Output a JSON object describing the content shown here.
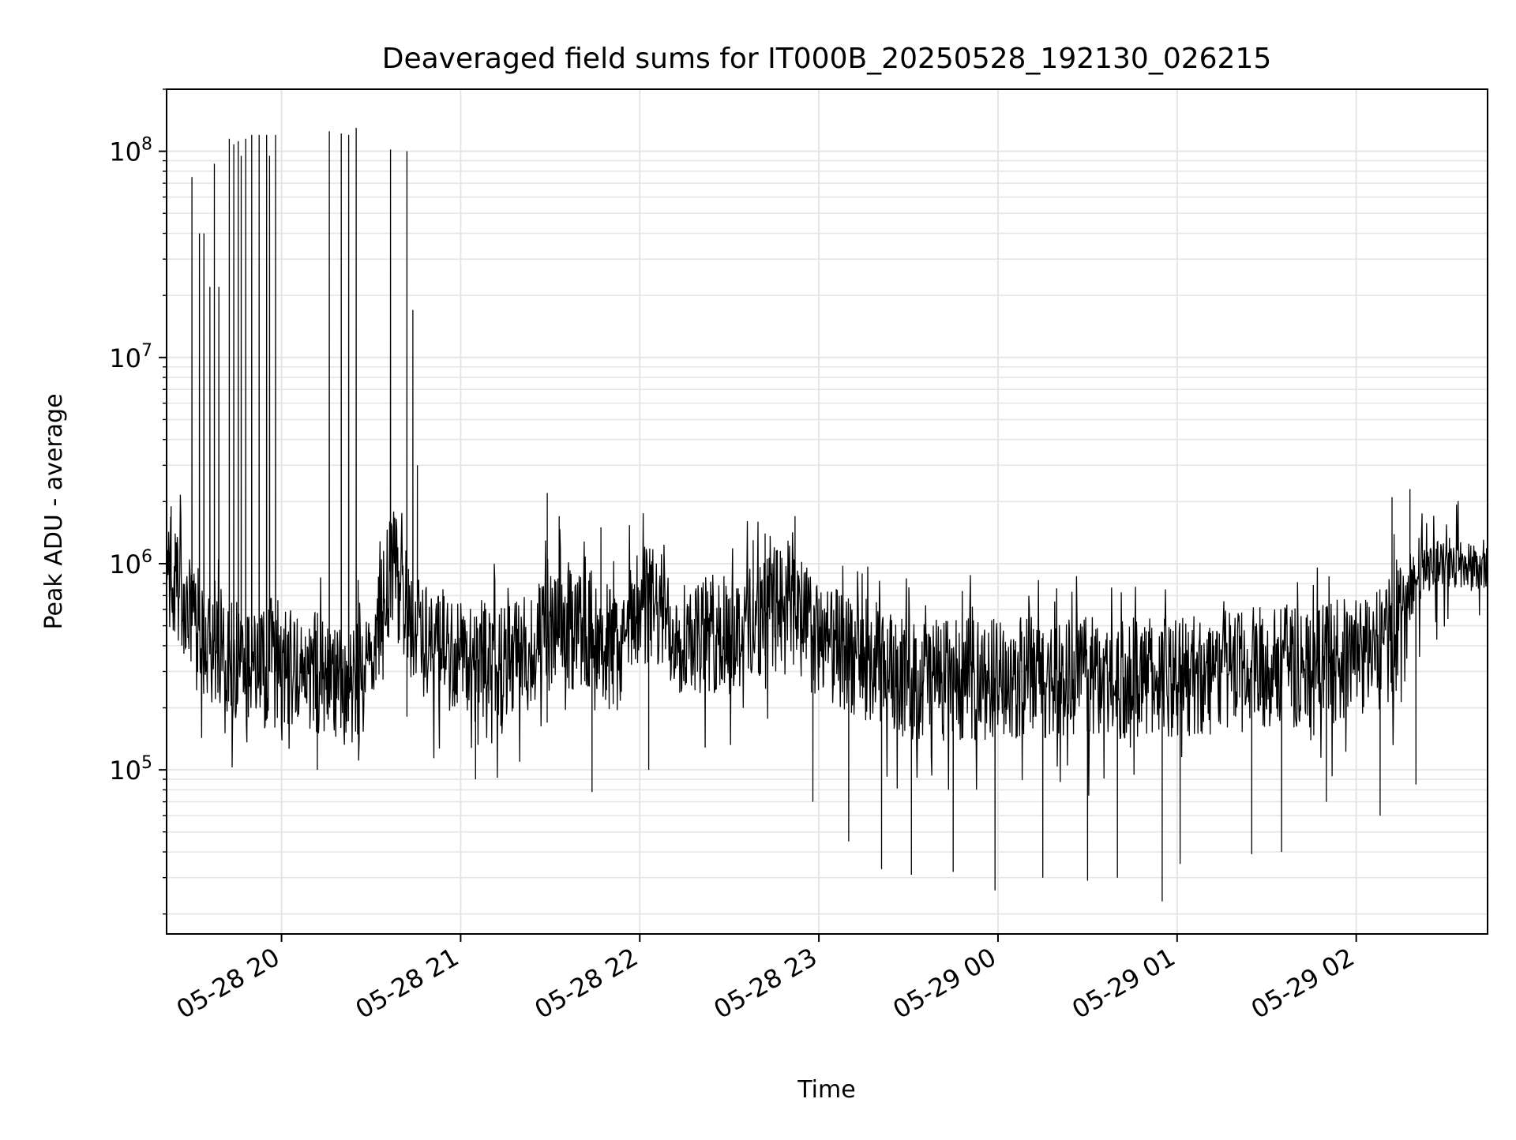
{
  "chart_data": {
    "type": "line",
    "title": "Deaveraged field sums for IT000B_20250528_192130_026215",
    "xlabel": "Time",
    "ylabel": "Peak ADU - average",
    "yscale": "log",
    "ylim": [
      16000,
      200000000
    ],
    "xlim": [
      "2025-05-28 19:21:30",
      "2025-05-29 02:44:00"
    ],
    "grid": true,
    "line_color": "#000000",
    "grid_color": "#e5e5e5",
    "x_ticks": [
      "05-28 20",
      "05-28 21",
      "05-28 22",
      "05-28 23",
      "05-29 00",
      "05-29 01",
      "05-29 02"
    ],
    "x_tick_times": [
      "2025-05-28 20:00",
      "2025-05-28 21:00",
      "2025-05-28 22:00",
      "2025-05-28 23:00",
      "2025-05-29 00:00",
      "2025-05-29 01:00",
      "2025-05-29 02:00"
    ],
    "y_major_ticks": [
      {
        "value": 100000,
        "base": "10",
        "exp": "5"
      },
      {
        "value": 1000000,
        "base": "10",
        "exp": "6"
      },
      {
        "value": 10000000,
        "base": "10",
        "exp": "7"
      },
      {
        "value": 100000000,
        "base": "10",
        "exp": "8"
      }
    ],
    "series": [
      {
        "x": [
          "2025-05-28 19:21:30",
          "2025-05-28 19:30",
          "2025-05-28 19:40",
          "2025-05-28 19:50",
          "2025-05-28 20:00",
          "2025-05-28 20:10",
          "2025-05-28 20:20",
          "2025-05-28 20:30",
          "2025-05-28 20:37",
          "2025-05-28 20:45",
          "2025-05-28 21:00",
          "2025-05-28 21:15",
          "2025-05-28 21:30",
          "2025-05-28 21:45",
          "2025-05-28 21:53",
          "2025-05-28 22:00",
          "2025-05-28 22:15",
          "2025-05-28 22:30",
          "2025-05-28 22:40",
          "2025-05-28 22:50",
          "2025-05-28 23:00",
          "2025-05-28 23:15",
          "2025-05-28 23:30",
          "2025-05-28 23:45",
          "2025-05-29 00:00",
          "2025-05-29 00:15",
          "2025-05-29 00:30",
          "2025-05-29 00:45",
          "2025-05-29 01:00",
          "2025-05-29 01:15",
          "2025-05-29 01:30",
          "2025-05-29 01:45",
          "2025-05-29 02:00",
          "2025-05-29 02:10",
          "2025-05-29 02:15",
          "2025-05-29 02:25",
          "2025-05-29 02:35",
          "2025-05-29 02:44"
        ],
        "values": [
          1000000,
          500000,
          400000,
          300000,
          300000,
          300000,
          250000,
          300000,
          1000000,
          450000,
          350000,
          320000,
          450000,
          500000,
          350000,
          700000,
          450000,
          450000,
          550000,
          700000,
          400000,
          350000,
          280000,
          270000,
          280000,
          280000,
          280000,
          280000,
          280000,
          300000,
          320000,
          320000,
          350000,
          400000,
          600000,
          1000000,
          1000000,
          900000
        ]
      }
    ],
    "spikes": [
      {
        "t": "2025-05-28 19:30:00",
        "v": 75000000
      },
      {
        "t": "2025-05-28 19:32:30",
        "v": 40000000
      },
      {
        "t": "2025-05-28 19:34:00",
        "v": 40000000
      },
      {
        "t": "2025-05-28 19:36:00",
        "v": 22000000
      },
      {
        "t": "2025-05-28 19:37:30",
        "v": 87000000
      },
      {
        "t": "2025-05-28 19:39:00",
        "v": 22000000
      },
      {
        "t": "2025-05-28 19:42:30",
        "v": 115000000
      },
      {
        "t": "2025-05-28 19:44:00",
        "v": 108000000
      },
      {
        "t": "2025-05-28 19:45:30",
        "v": 112000000
      },
      {
        "t": "2025-05-28 19:46:30",
        "v": 95000000
      },
      {
        "t": "2025-05-28 19:48:00",
        "v": 115000000
      },
      {
        "t": "2025-05-28 19:50:00",
        "v": 120000000
      },
      {
        "t": "2025-05-28 19:52:30",
        "v": 120000000
      },
      {
        "t": "2025-05-28 19:55:00",
        "v": 120000000
      },
      {
        "t": "2025-05-28 19:58:00",
        "v": 120000000
      },
      {
        "t": "2025-05-28 20:16:00",
        "v": 125000000
      },
      {
        "t": "2025-05-28 20:20:00",
        "v": 122000000
      },
      {
        "t": "2025-05-28 20:22:30",
        "v": 120000000
      },
      {
        "t": "2025-05-28 20:25:00",
        "v": 130000000
      },
      {
        "t": "2025-05-28 20:36:30",
        "v": 102000000
      },
      {
        "t": "2025-05-28 20:42:00",
        "v": 100000000
      },
      {
        "t": "2025-05-28 20:44:00",
        "v": 17000000
      },
      {
        "t": "2025-05-28 20:45:30",
        "v": 3000000
      }
    ],
    "dips": [
      {
        "t": "2025-05-28 19:56:00",
        "v": 95000000
      },
      {
        "t": "2025-05-28 20:12:00",
        "v": 100000
      },
      {
        "t": "2025-05-28 21:05:00",
        "v": 90000
      },
      {
        "t": "2025-05-28 21:44:00",
        "v": 78000
      },
      {
        "t": "2025-05-28 22:03:00",
        "v": 100000
      },
      {
        "t": "2025-05-28 22:58:00",
        "v": 70000
      },
      {
        "t": "2025-05-28 23:10:00",
        "v": 45000
      },
      {
        "t": "2025-05-28 23:21:00",
        "v": 33000
      },
      {
        "t": "2025-05-28 23:31:00",
        "v": 31000
      },
      {
        "t": "2025-05-28 23:45:00",
        "v": 32000
      },
      {
        "t": "2025-05-28 23:59:00",
        "v": 26000
      },
      {
        "t": "2025-05-29 00:15:00",
        "v": 30000
      },
      {
        "t": "2025-05-29 00:30:00",
        "v": 29000
      },
      {
        "t": "2025-05-29 00:40:00",
        "v": 30000
      },
      {
        "t": "2025-05-29 00:55:00",
        "v": 23000
      },
      {
        "t": "2025-05-29 01:01:00",
        "v": 35000
      },
      {
        "t": "2025-05-29 01:25:00",
        "v": 39000
      },
      {
        "t": "2025-05-29 01:35:00",
        "v": 40000
      },
      {
        "t": "2025-05-29 01:50:00",
        "v": 70000
      },
      {
        "t": "2025-05-29 02:08:00",
        "v": 60000
      },
      {
        "t": "2025-05-29 02:20:00",
        "v": 85000
      }
    ],
    "peaks": [
      {
        "t": "2025-05-28 21:29:00",
        "v": 2200000
      },
      {
        "t": "2025-05-28 21:33:00",
        "v": 1700000
      },
      {
        "t": "2025-05-28 21:47:00",
        "v": 1500000
      },
      {
        "t": "2025-05-28 22:38:00",
        "v": 1300000
      },
      {
        "t": "2025-05-28 22:42:00",
        "v": 1400000
      },
      {
        "t": "2025-05-28 22:52:00",
        "v": 1700000
      },
      {
        "t": "2025-05-29 02:12:00",
        "v": 2100000
      },
      {
        "t": "2025-05-29 02:18:00",
        "v": 2300000
      },
      {
        "t": "2025-05-28 19:23:00",
        "v": 1900000
      }
    ]
  }
}
